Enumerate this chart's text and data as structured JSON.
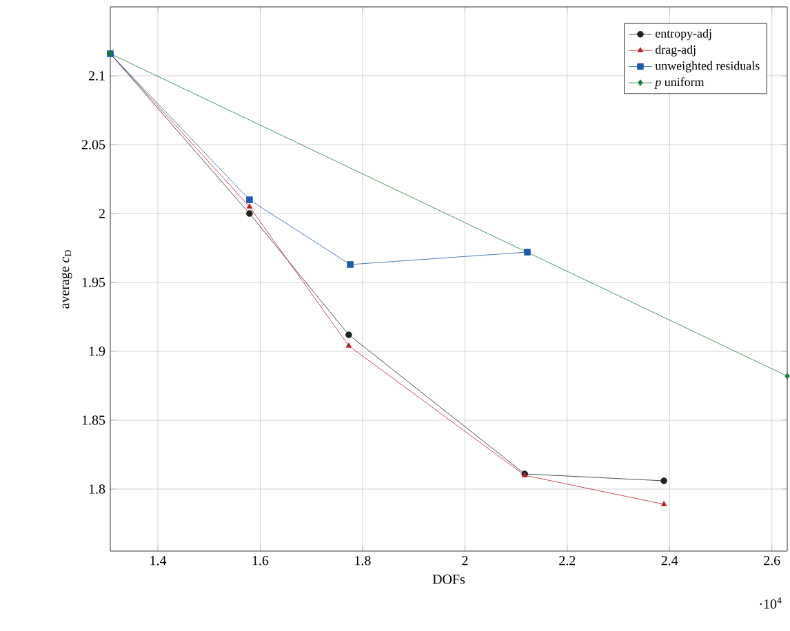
{
  "chart_data": {
    "type": "line",
    "xlabel": "DOFs",
    "ylabel": "average *c*$_{D}$",
    "annotations": [
      "·10$^{4}$"
    ],
    "xlim": [
      1.307,
      2.63
    ],
    "ylim": [
      1.755,
      2.15
    ],
    "xticks": [
      1.4,
      1.6,
      1.8,
      2,
      2.2,
      2.4,
      2.6
    ],
    "yticks": [
      1.8,
      1.85,
      1.9,
      1.95,
      2,
      2.05,
      2.1
    ],
    "grid": true,
    "legend": "top right",
    "series": [
      {
        "name": "entropy-adj",
        "color": "#222222",
        "marker": "circle",
        "x": [
          1.307,
          1.579,
          1.773,
          2.117,
          2.389
        ],
        "values": [
          2.116,
          2.0,
          1.912,
          1.811,
          1.806
        ]
      },
      {
        "name": "drag-adj",
        "color": "#b5202a",
        "marker": "triangle",
        "x": [
          1.307,
          1.579,
          1.773,
          2.117,
          2.389
        ],
        "values": [
          2.116,
          2.005,
          1.904,
          1.81,
          1.789
        ]
      },
      {
        "name": "unweighted residuals",
        "color": "#1f5aa6",
        "marker": "square",
        "x": [
          1.307,
          1.579,
          1.776,
          2.122
        ],
        "values": [
          2.116,
          2.01,
          1.963,
          1.972
        ]
      },
      {
        "name": "*p* uniform",
        "color": "#1a7a3a",
        "marker": "diamond",
        "x": [
          1.307,
          2.63
        ],
        "values": [
          2.116,
          1.882
        ]
      }
    ]
  }
}
